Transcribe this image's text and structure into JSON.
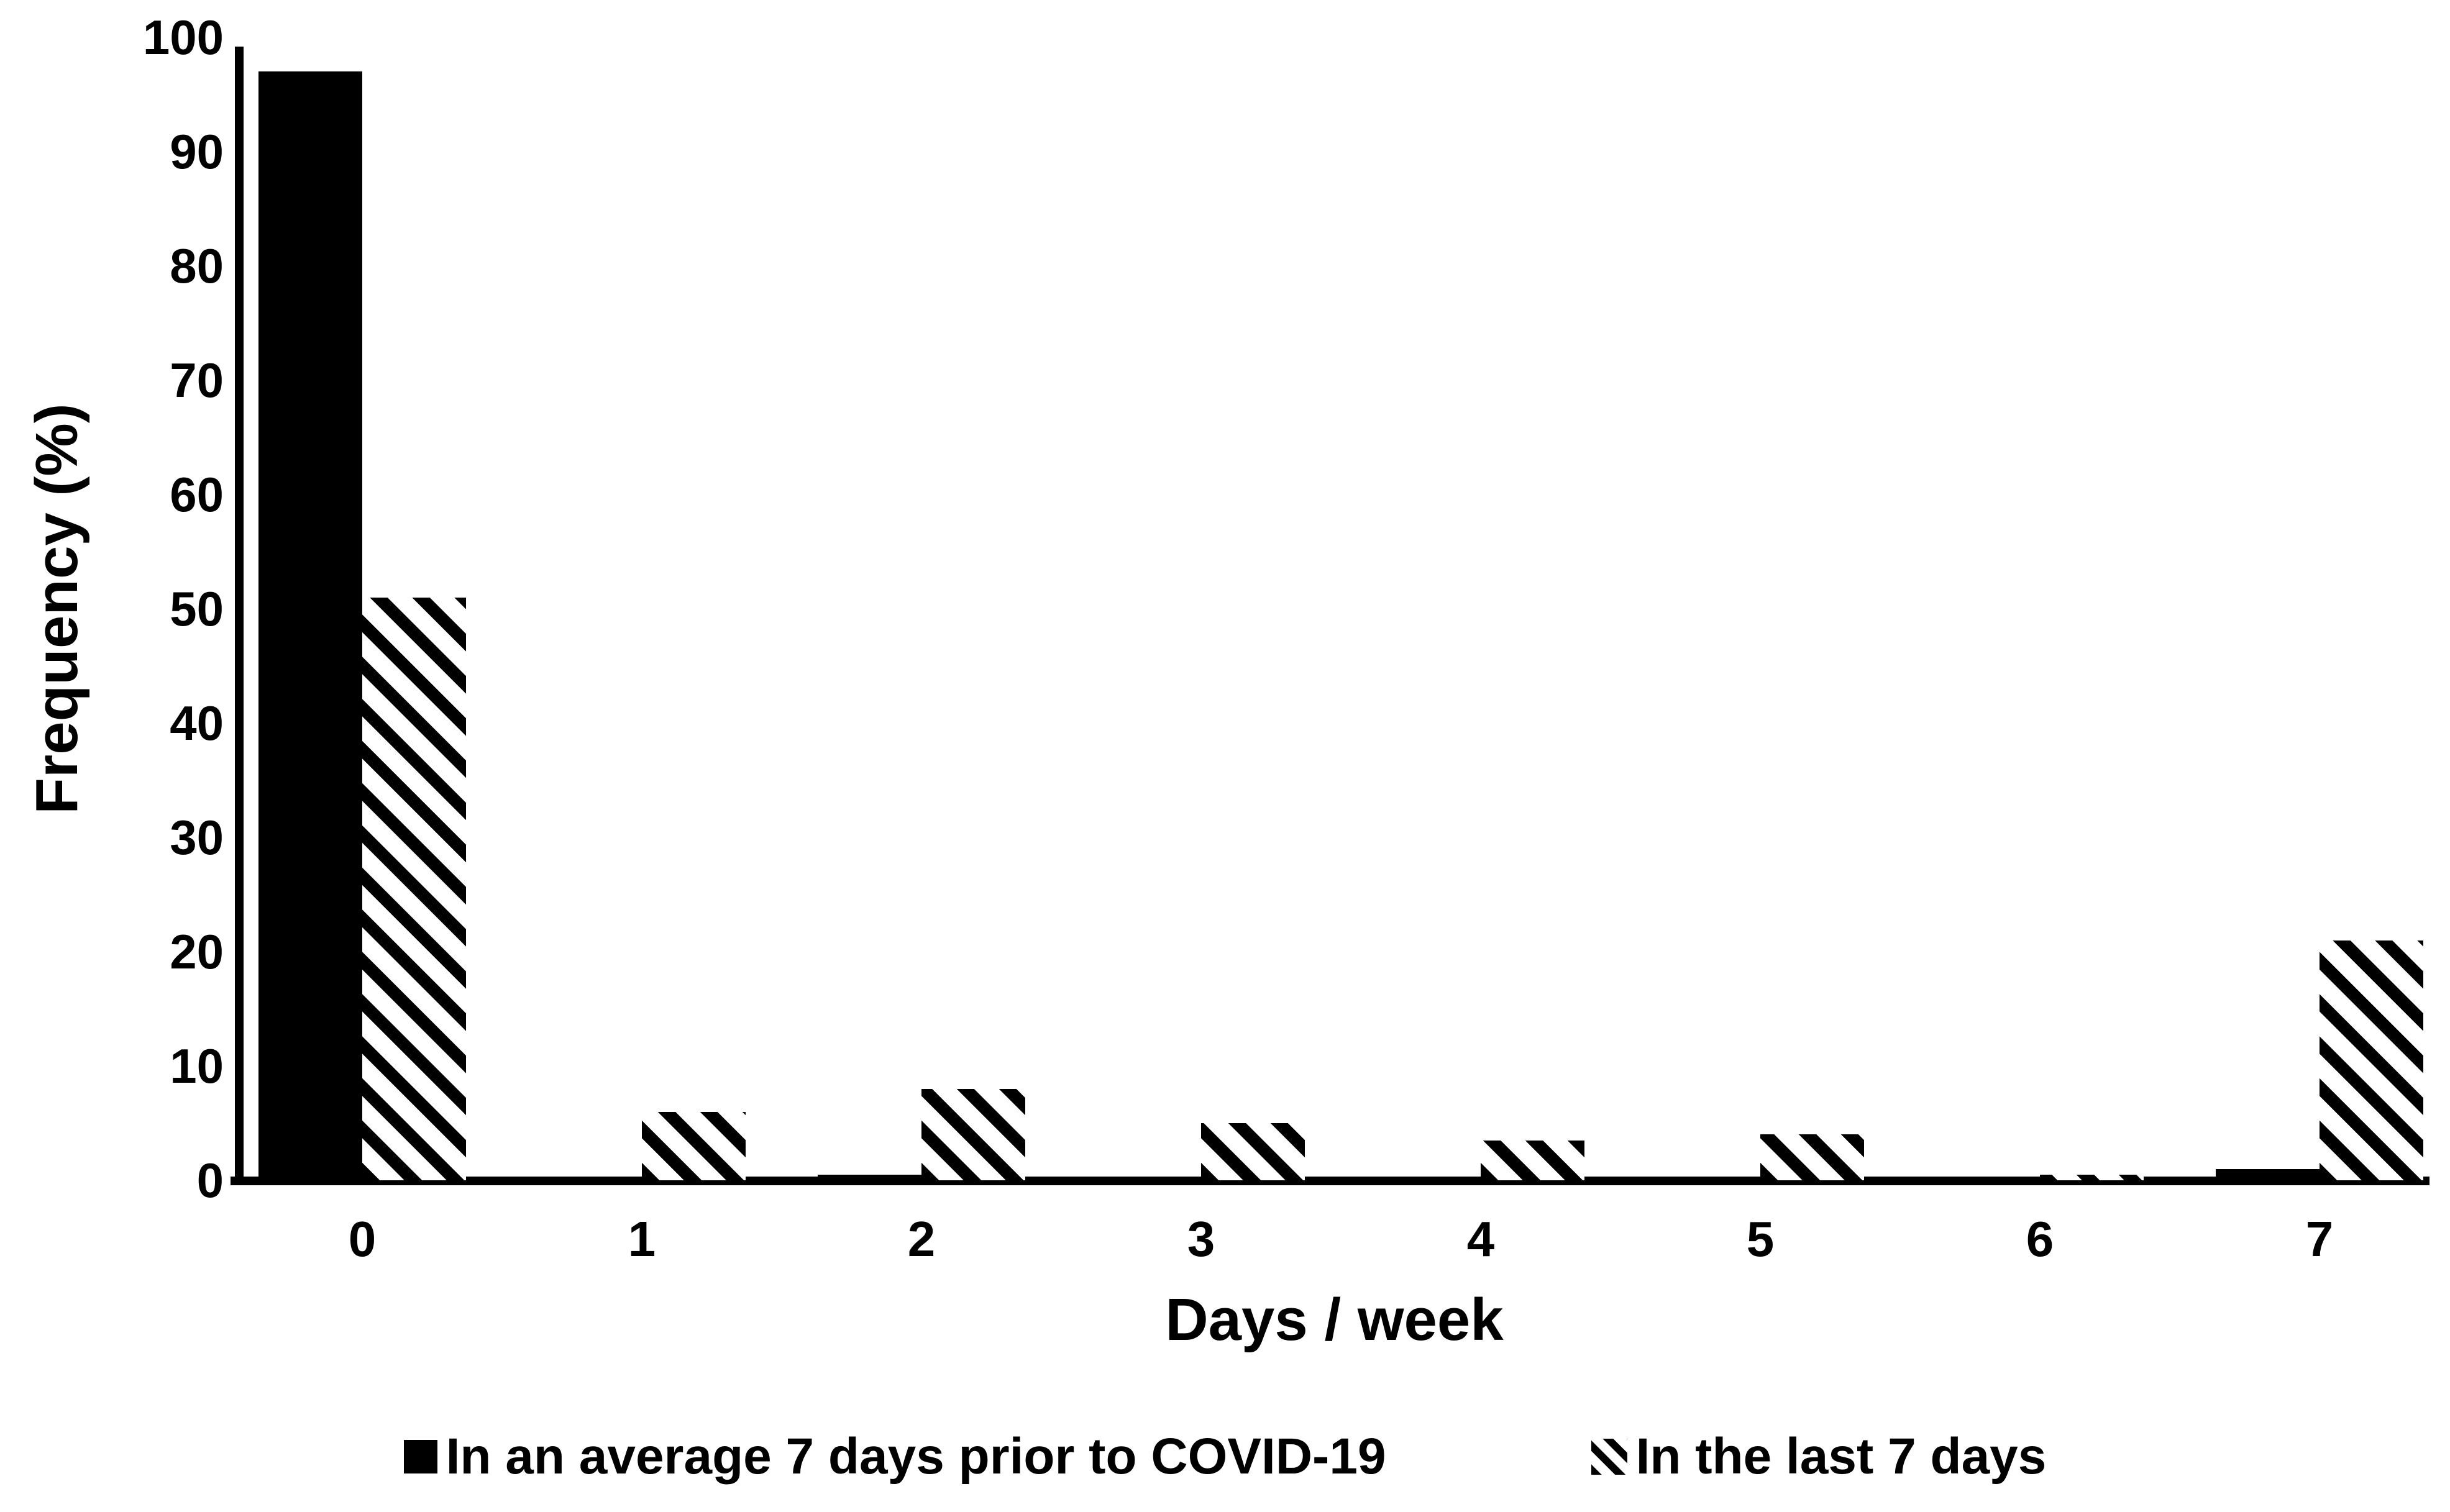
{
  "chart_data": {
    "type": "bar",
    "title": "",
    "categories": [
      "0",
      "1",
      "2",
      "3",
      "4",
      "5",
      "6",
      "7"
    ],
    "series": [
      {
        "name": "In an average 7 days prior to COVID-19",
        "pattern": "solid-black",
        "values": [
          97,
          0,
          0.5,
          0,
          0,
          0,
          0,
          1
        ]
      },
      {
        "name": "In the last 7 days",
        "pattern": "diagonal-hatch-down",
        "values": [
          51,
          6,
          8,
          5,
          3.5,
          4,
          0.5,
          21
        ]
      }
    ],
    "xlabel": "Days / week",
    "ylabel": "Frequency (%)",
    "ylim": [
      0,
      100
    ],
    "y_ticks": [
      0,
      10,
      20,
      30,
      40,
      50,
      60,
      70,
      80,
      90,
      100
    ],
    "x_ticks": [
      "0",
      "1",
      "2",
      "3",
      "4",
      "5",
      "6",
      "7"
    ],
    "grid": false,
    "tick_marks": false,
    "legend_position": "bottom-center",
    "colors": {
      "bars": "#000000",
      "background": "#ffffff",
      "axis": "#000000"
    }
  }
}
